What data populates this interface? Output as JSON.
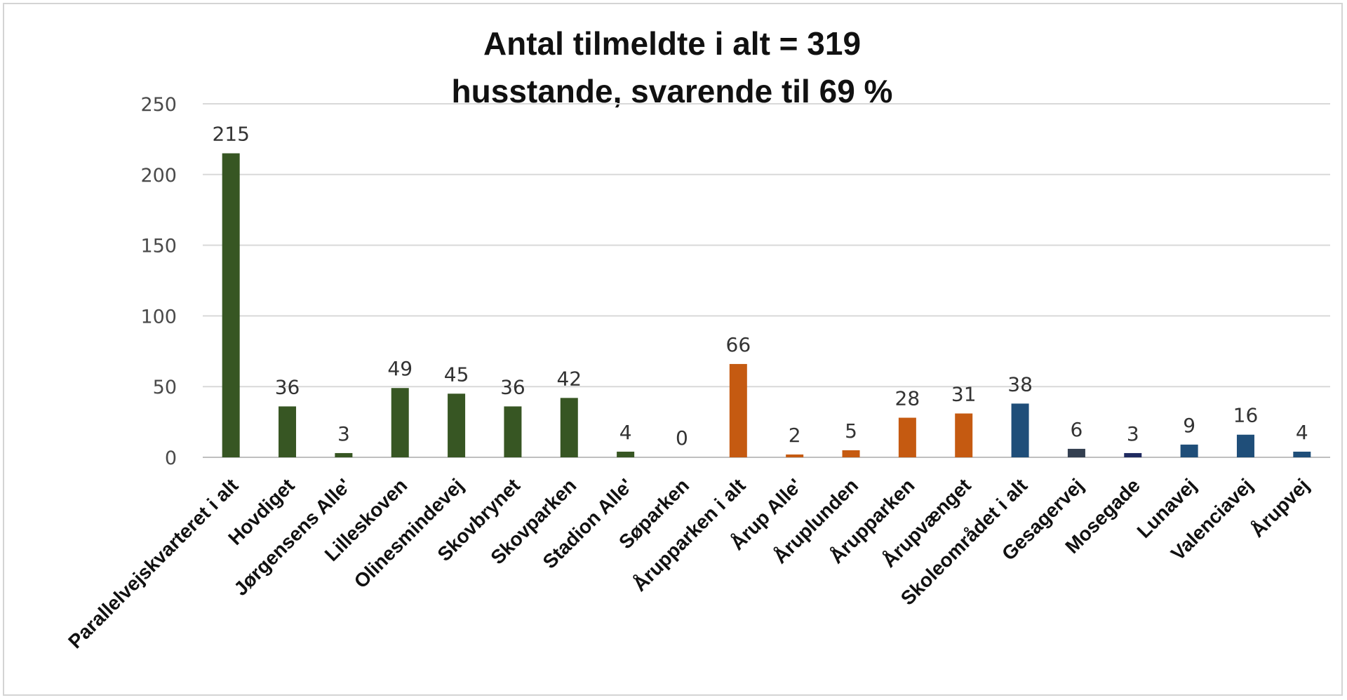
{
  "chart_data": {
    "type": "bar",
    "title": "Antal tilmeldte i alt = 319",
    "subtitle": "husstande, svarende til 69 %",
    "xlabel": "",
    "ylabel": "",
    "ylim": [
      0,
      250
    ],
    "yticks": [
      "0",
      "50",
      "100",
      "150",
      "200",
      "250"
    ],
    "grid": true,
    "legend": "none",
    "categories": [
      "Parallelvejskvarteret i alt",
      "Hovdiget",
      "Jørgensens Alle'",
      "Lilleskoven",
      "Olinesmindevej",
      "Skovbrynet",
      "Skovparken",
      "Stadion Alle'",
      "Søparken",
      "Årupparken i alt",
      "Årup Alle'",
      "Åruplunden",
      "Årupparken",
      "Årupvænget",
      "Skoleområdet i alt",
      "Gesagervej",
      "Mosegade",
      "Lunavej",
      "Valenciavej",
      "Årupvej"
    ],
    "values": [
      215,
      36,
      3,
      49,
      45,
      36,
      42,
      4,
      0,
      66,
      2,
      5,
      28,
      31,
      38,
      6,
      3,
      9,
      16,
      4
    ],
    "bar_colors": [
      "#375623",
      "#375623",
      "#375623",
      "#375623",
      "#375623",
      "#375623",
      "#375623",
      "#375623",
      "#375623",
      "#c55a11",
      "#c55a11",
      "#c55a11",
      "#c55a11",
      "#c55a11",
      "#1f4e79",
      "#333f50",
      "#1f2a60",
      "#1f4e79",
      "#1f4e79",
      "#1f4e79"
    ],
    "grid_color": "#d9d9d9",
    "axis_color": "#bfbfbf"
  }
}
